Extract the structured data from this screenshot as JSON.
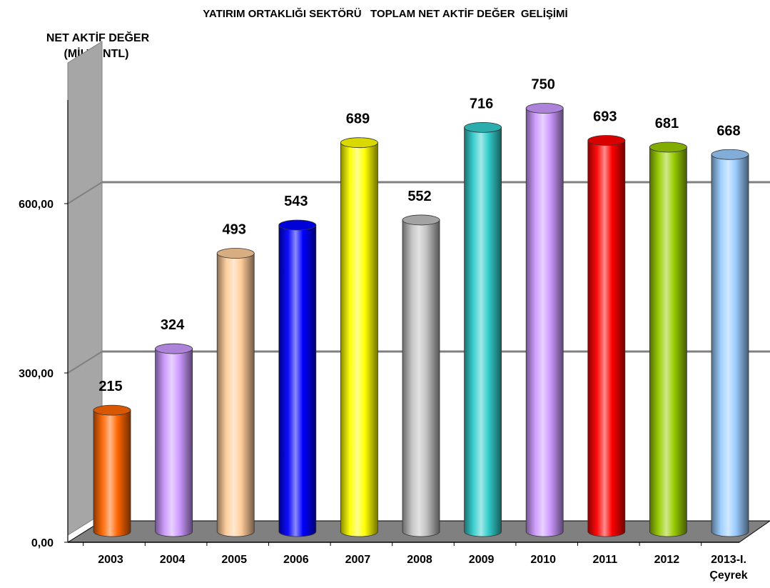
{
  "chart_data": {
    "type": "bar",
    "title": "YATIRIM ORTAKLIĞI SEKTÖRÜ   TOPLAM NET AKTİF DEĞER  GELİŞİMİ",
    "ylabel": "NET AKTİF DEĞER",
    "ylabel_unit": "(MİLYONTL)",
    "xlabel": "",
    "categories": [
      "2003",
      "2004",
      "2005",
      "2006",
      "2007",
      "2008",
      "2009",
      "2010",
      "2011",
      "2012",
      "2013-I. Çeyrek"
    ],
    "values": [
      215,
      324,
      493,
      543,
      689,
      552,
      716,
      750,
      693,
      681,
      668
    ],
    "value_labels": [
      "215",
      "324",
      "493",
      "543",
      "689",
      "552",
      "716",
      "750",
      "693",
      "681",
      "668"
    ],
    "y_ticks": [
      "0,00",
      "300,00",
      "600,00"
    ],
    "y_tick_values": [
      0,
      300,
      600
    ],
    "ylim": [
      0,
      900
    ],
    "grid": true,
    "legend": false,
    "colors": [
      "#ff6600",
      "#cc99ff",
      "#ffcc99",
      "#0000ff",
      "#ffff00",
      "#c0c0c0",
      "#33cccc",
      "#cc99ff",
      "#ff0000",
      "#99cc00",
      "#99ccff"
    ],
    "wall_color": "#ffffff",
    "floor_color": "#808080",
    "gridline_color": "#808080"
  }
}
